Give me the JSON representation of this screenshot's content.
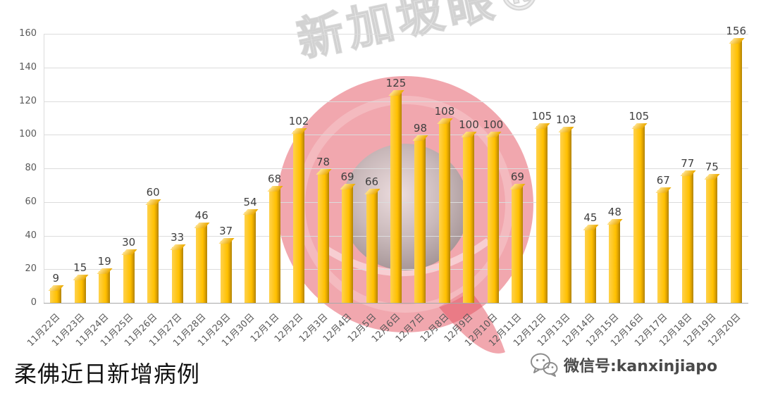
{
  "chart_data": {
    "type": "bar",
    "title": "柔佛近日新增病例",
    "categories": [
      "11月22日",
      "11月23日",
      "11月24日",
      "11月25日",
      "11月26日",
      "11月27日",
      "11月28日",
      "11月29日",
      "11月30日",
      "12月1日",
      "12月2日",
      "12月3日",
      "12月4日",
      "12月5日",
      "12月6日",
      "12月7日",
      "12月8日",
      "12月9日",
      "12月10日",
      "12月11日",
      "12月12日",
      "12月13日",
      "12月14日",
      "12月15日",
      "12月16日",
      "12月17日",
      "12月18日",
      "12月19日",
      "12月20日"
    ],
    "values": [
      9,
      15,
      19,
      30,
      60,
      33,
      46,
      37,
      54,
      68,
      102,
      78,
      69,
      66,
      125,
      98,
      108,
      100,
      100,
      69,
      105,
      103,
      45,
      48,
      105,
      67,
      77,
      75,
      156
    ],
    "ylim": [
      0,
      160
    ],
    "y_ticks": [
      0,
      20,
      40,
      60,
      80,
      100,
      120,
      140,
      160
    ],
    "grid": true,
    "legend": "none",
    "bar_color": "#FFC000",
    "bar_shade_color": "#B08200",
    "bar_highlight_color": "#FFD24D",
    "value_label_color": "#3F3F3F",
    "axis_label_color": "#595959"
  },
  "watermarks": {
    "brand_text": "新加坡眼®",
    "logo_color": "#E4505E"
  },
  "footer": {
    "wechat_label": "微信号:kanxinjiapo"
  }
}
